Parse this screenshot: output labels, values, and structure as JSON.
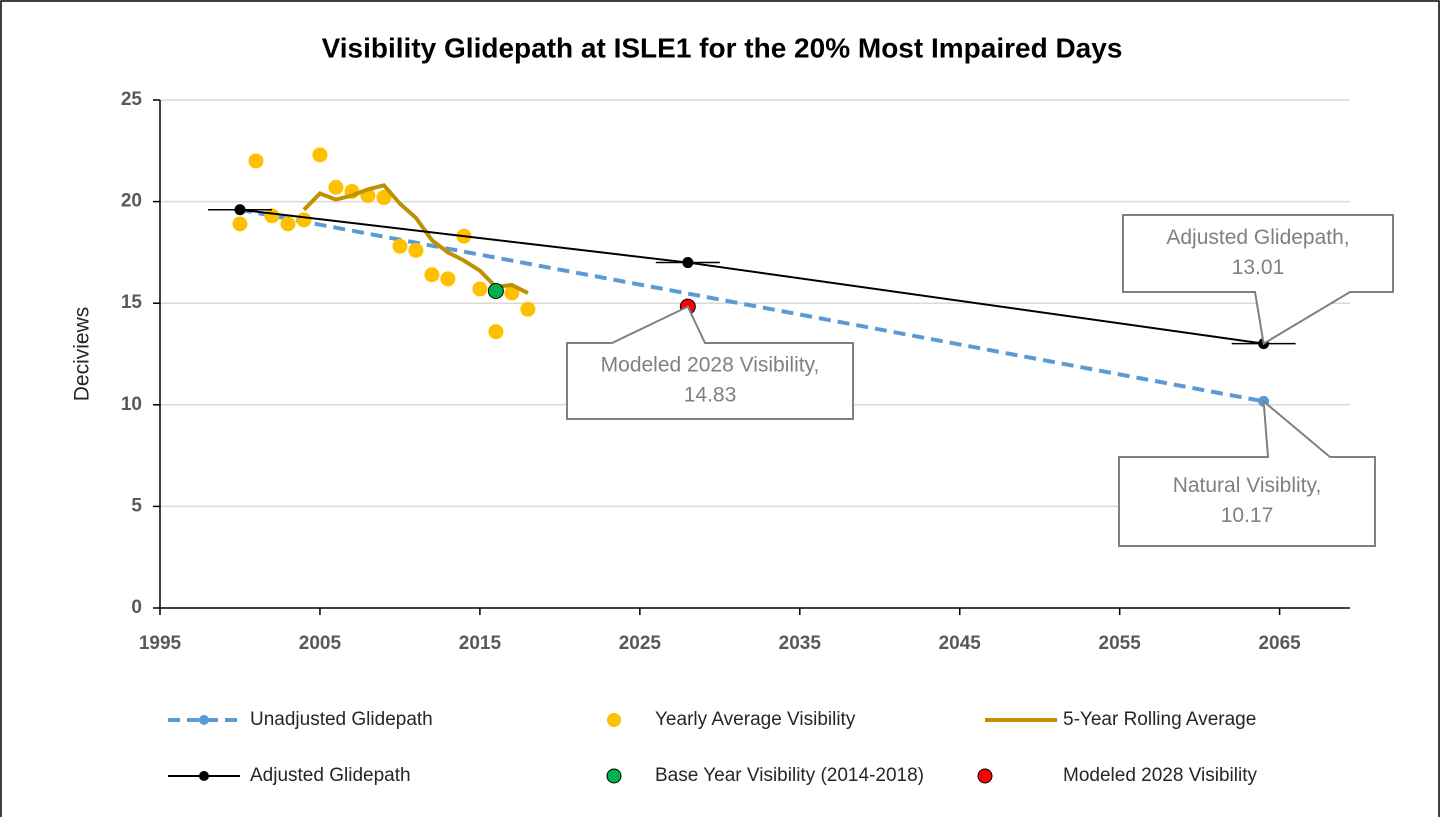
{
  "chart_data": {
    "type": "line",
    "title": "Visibility Glidepath at ISLE1 for the 20% Most Impaired Days",
    "ylabel": "Deciviews",
    "xlim": [
      1995,
      2069.4
    ],
    "xticks": [
      1995,
      2005,
      2015,
      2025,
      2035,
      2045,
      2055,
      2065
    ],
    "ylim": [
      0,
      25
    ],
    "yticks": [
      0,
      5,
      10,
      15,
      20,
      25
    ],
    "grid": true,
    "series": [
      {
        "name": "Unadjusted Glidepath",
        "color": "#5b9bd5",
        "line": "dashed",
        "marker": "end",
        "x": [
          2000,
          2064
        ],
        "values": [
          19.6,
          10.17
        ]
      },
      {
        "name": "Yearly Average Visibility",
        "color": "#ffc000",
        "line": "none",
        "marker": "all",
        "x": [
          2000,
          2001,
          2002,
          2003,
          2004,
          2005,
          2006,
          2007,
          2008,
          2009,
          2010,
          2011,
          2012,
          2013,
          2014,
          2015,
          2016,
          2017,
          2018
        ],
        "values": [
          18.9,
          22.0,
          19.3,
          18.9,
          19.1,
          22.3,
          20.7,
          20.5,
          20.3,
          20.2,
          17.8,
          17.6,
          16.4,
          16.2,
          18.3,
          15.7,
          13.6,
          15.5,
          14.7
        ]
      },
      {
        "name": "5-Year Rolling Average",
        "color": "#bf9000",
        "line": "solid",
        "marker": "none",
        "x": [
          2004,
          2005,
          2006,
          2007,
          2008,
          2009,
          2010,
          2011,
          2012,
          2013,
          2014,
          2015,
          2016,
          2017,
          2018
        ],
        "values": [
          19.6,
          20.4,
          20.1,
          20.3,
          20.6,
          20.8,
          19.9,
          19.2,
          18.1,
          17.5,
          17.1,
          16.6,
          15.8,
          15.9,
          15.5
        ]
      },
      {
        "name": "Adjusted Glidepath",
        "color": "#000000",
        "line": "solid",
        "marker": "all",
        "x": [
          2000,
          2028,
          2064
        ],
        "values": [
          19.6,
          17.0,
          13.01
        ]
      },
      {
        "name": "Base Year Visibility (2014-2018)",
        "color": "#00b050",
        "line": "none",
        "marker": "all",
        "x": [
          2016
        ],
        "values": [
          15.6
        ]
      },
      {
        "name": "Modeled 2028 Visibility",
        "color": "#ff0000",
        "line": "none",
        "marker": "all",
        "x": [
          2028
        ],
        "values": [
          14.83
        ]
      }
    ],
    "annotations": [
      {
        "lines": [
          "Adjusted Glidepath,",
          "13.01"
        ]
      },
      {
        "lines": [
          "Modeled 2028 Visibility,",
          "14.83"
        ]
      },
      {
        "lines": [
          "Natural Visiblity,",
          "10.17"
        ]
      }
    ]
  }
}
